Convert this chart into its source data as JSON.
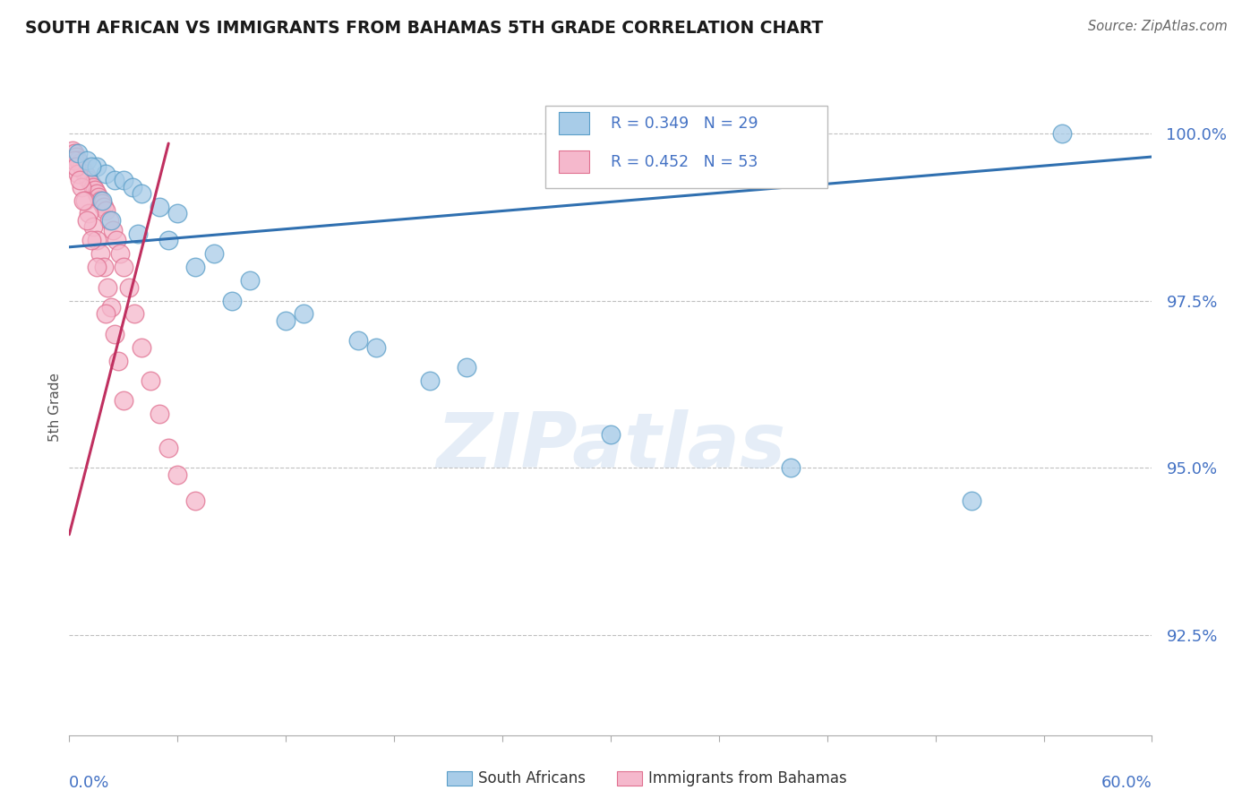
{
  "title": "SOUTH AFRICAN VS IMMIGRANTS FROM BAHAMAS 5TH GRADE CORRELATION CHART",
  "source": "Source: ZipAtlas.com",
  "ylabel": "5th Grade",
  "xmin": 0.0,
  "xmax": 60.0,
  "ymin": 91.0,
  "ymax": 100.8,
  "yticks": [
    92.5,
    95.0,
    97.5,
    100.0
  ],
  "ytick_labels": [
    "92.5%",
    "95.0%",
    "97.5%",
    "100.0%"
  ],
  "blue_R": 0.349,
  "blue_N": 29,
  "pink_R": 0.452,
  "pink_N": 53,
  "legend_label_blue": "South Africans",
  "legend_label_pink": "Immigrants from Bahamas",
  "blue_color": "#a8cce8",
  "pink_color": "#f5b8cc",
  "blue_edge_color": "#5a9ec8",
  "pink_edge_color": "#e07090",
  "blue_line_color": "#3070b0",
  "pink_line_color": "#c03060",
  "blue_scatter_x": [
    0.5,
    1.0,
    1.5,
    2.0,
    2.5,
    3.0,
    3.5,
    4.0,
    5.0,
    6.0,
    8.0,
    10.0,
    13.0,
    17.0,
    22.0,
    55.0,
    1.2,
    1.8,
    2.3,
    3.8,
    5.5,
    7.0,
    9.0,
    12.0,
    16.0,
    20.0,
    30.0,
    40.0,
    50.0
  ],
  "blue_scatter_y": [
    99.7,
    99.6,
    99.5,
    99.4,
    99.3,
    99.3,
    99.2,
    99.1,
    98.9,
    98.8,
    98.2,
    97.8,
    97.3,
    96.8,
    96.5,
    100.0,
    99.5,
    99.0,
    98.7,
    98.5,
    98.4,
    98.0,
    97.5,
    97.2,
    96.9,
    96.3,
    95.5,
    95.0,
    94.5
  ],
  "pink_scatter_x": [
    0.2,
    0.3,
    0.4,
    0.5,
    0.6,
    0.7,
    0.8,
    0.9,
    1.0,
    1.1,
    1.2,
    1.3,
    1.4,
    1.5,
    1.6,
    1.7,
    1.8,
    1.9,
    2.0,
    2.2,
    2.4,
    2.6,
    2.8,
    3.0,
    3.3,
    3.6,
    4.0,
    4.5,
    5.0,
    5.5,
    6.0,
    7.0,
    0.3,
    0.5,
    0.7,
    0.9,
    1.1,
    1.3,
    1.5,
    1.7,
    1.9,
    2.1,
    2.3,
    2.5,
    2.7,
    0.4,
    0.6,
    0.8,
    1.0,
    1.2,
    1.5,
    2.0,
    3.0
  ],
  "pink_scatter_y": [
    99.75,
    99.7,
    99.65,
    99.6,
    99.55,
    99.5,
    99.45,
    99.4,
    99.35,
    99.3,
    99.25,
    99.2,
    99.15,
    99.1,
    99.05,
    99.0,
    98.95,
    98.9,
    98.85,
    98.7,
    98.55,
    98.4,
    98.2,
    98.0,
    97.7,
    97.3,
    96.8,
    96.3,
    95.8,
    95.3,
    94.9,
    94.5,
    99.6,
    99.4,
    99.2,
    99.0,
    98.8,
    98.6,
    98.4,
    98.2,
    98.0,
    97.7,
    97.4,
    97.0,
    96.6,
    99.5,
    99.3,
    99.0,
    98.7,
    98.4,
    98.0,
    97.3,
    96.0
  ],
  "blue_trend_x0": 0.0,
  "blue_trend_x1": 60.0,
  "blue_trend_y0": 98.3,
  "blue_trend_y1": 99.65,
  "pink_trend_x0": 0.0,
  "pink_trend_x1": 5.5,
  "pink_trend_y0": 94.0,
  "pink_trend_y1": 99.85,
  "watermark_text": "ZIPatlas",
  "background_color": "#ffffff"
}
